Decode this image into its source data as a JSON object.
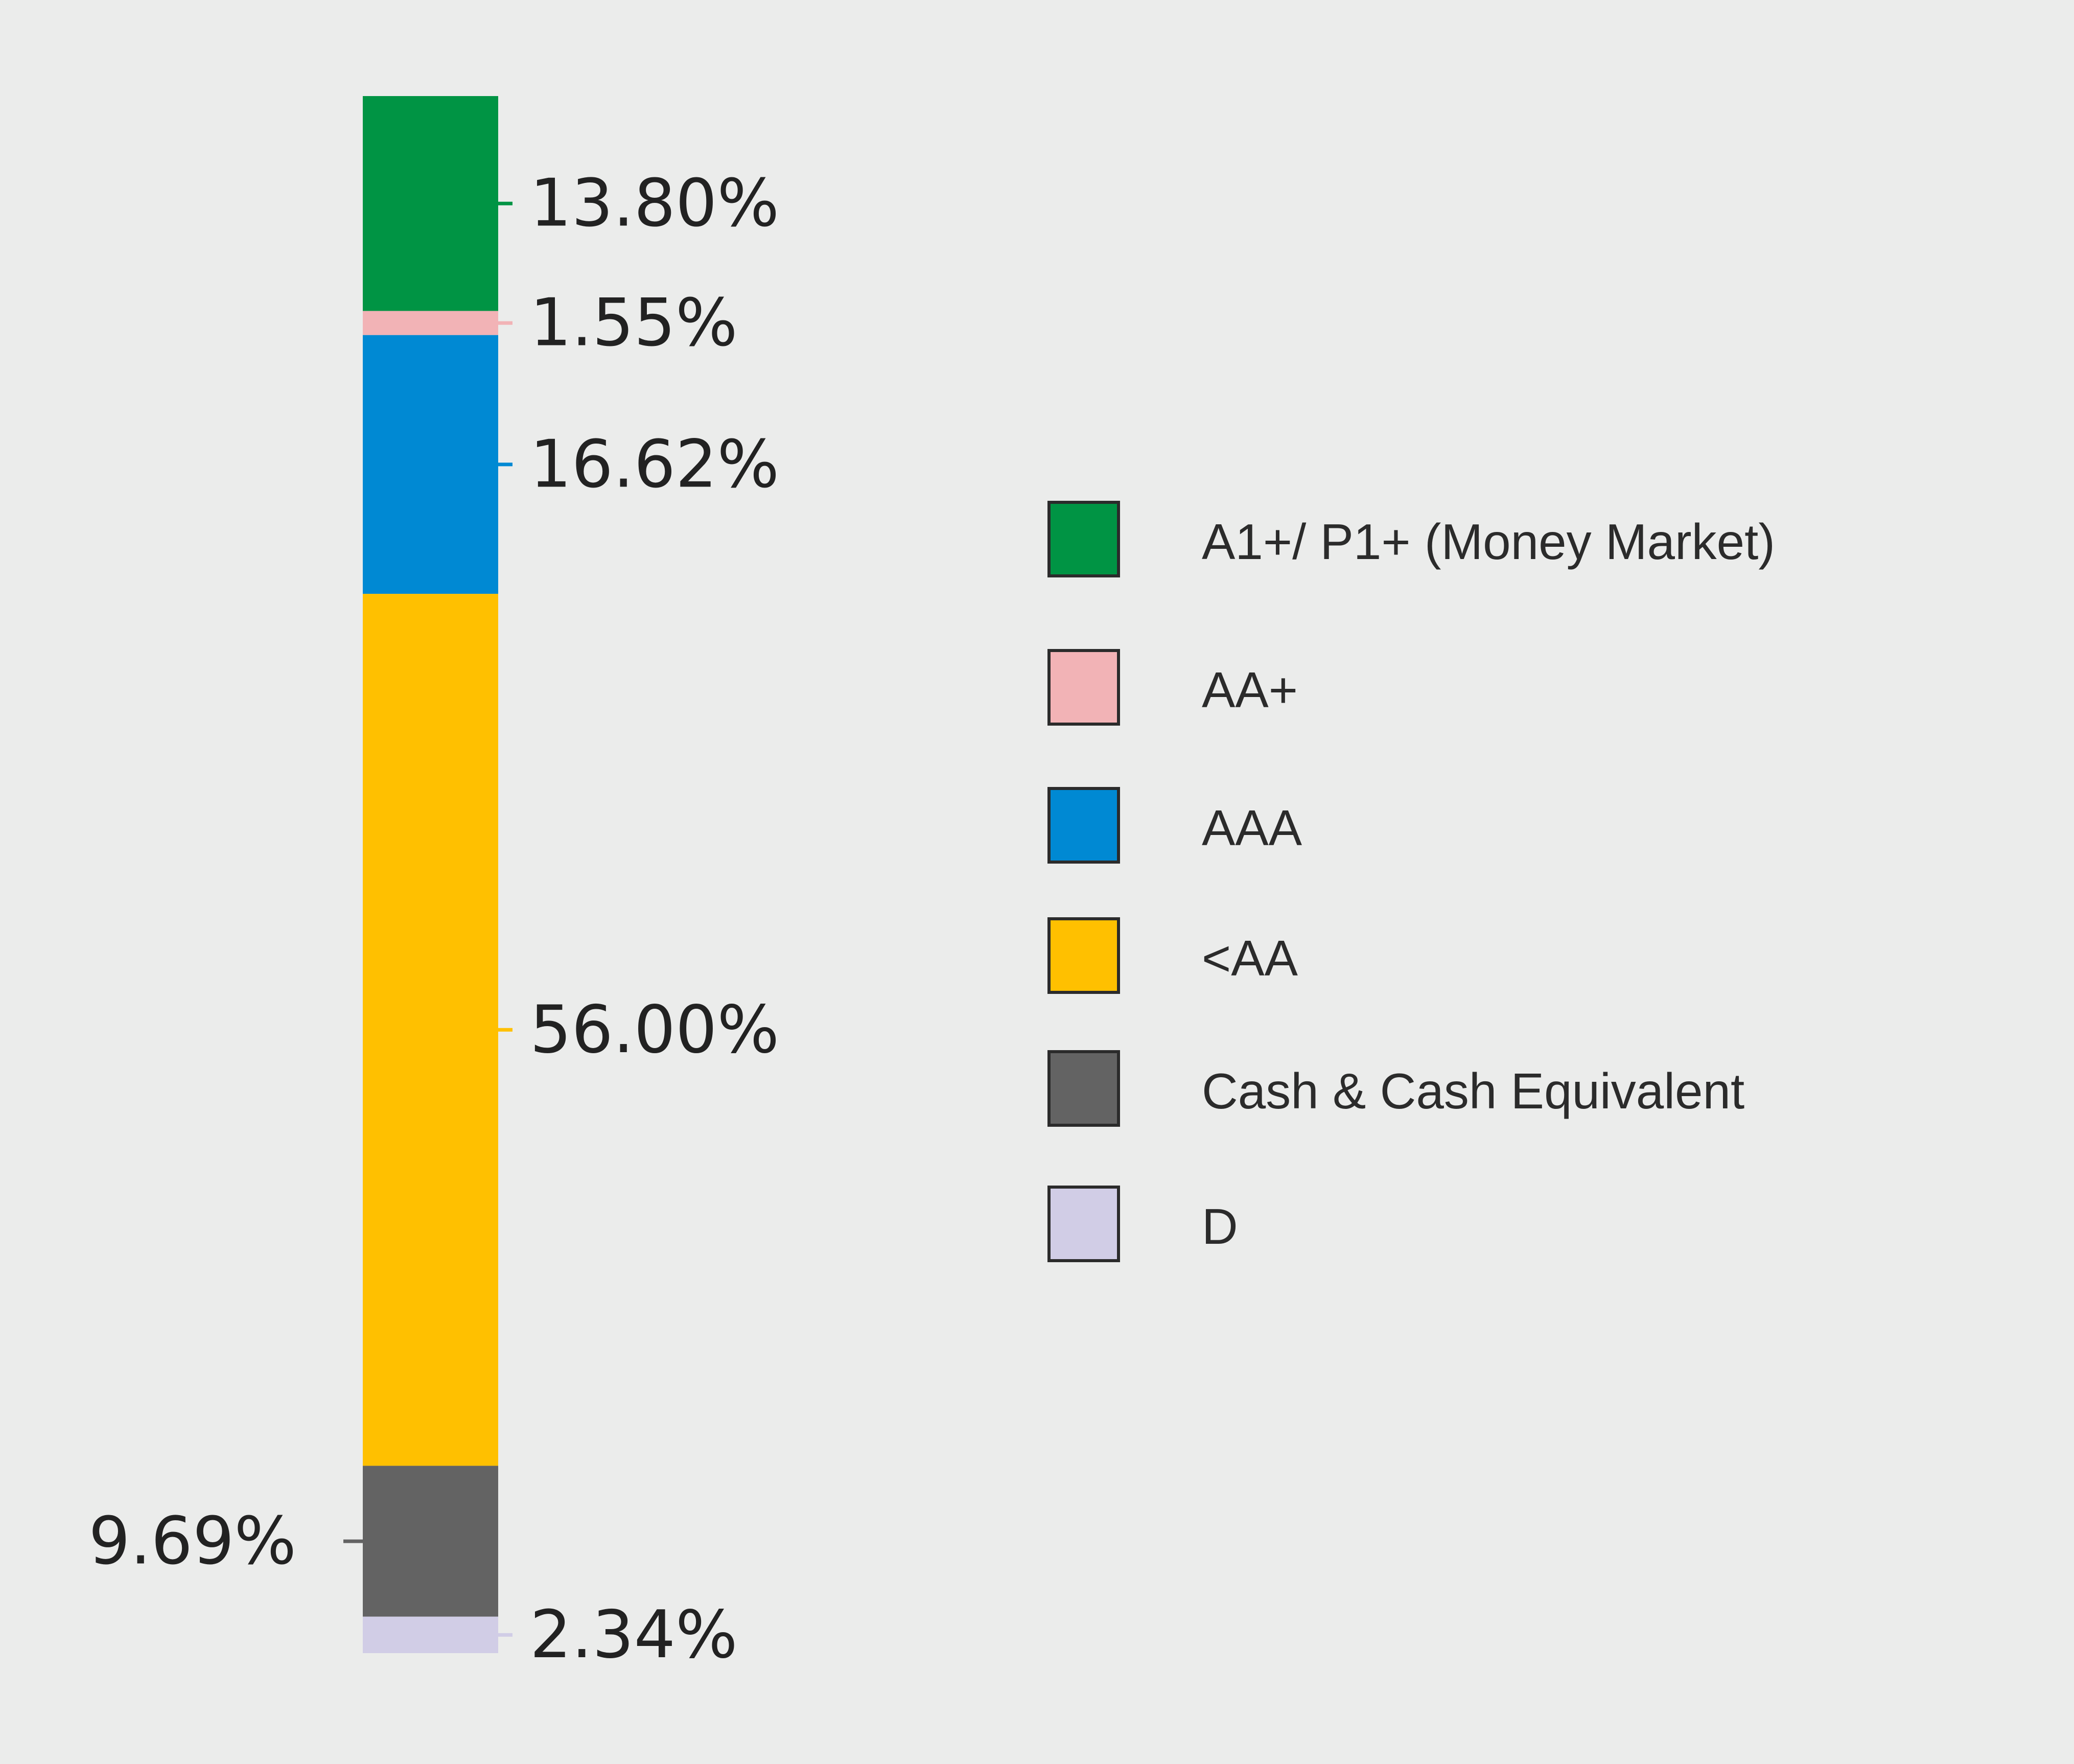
{
  "chart_data": {
    "type": "bar",
    "stacked": true,
    "orientation": "vertical",
    "unit": "%",
    "series": [
      {
        "name": "A1+/ P1+ (Money Market)",
        "value": 13.8,
        "label": "13.80%",
        "color": "#009444"
      },
      {
        "name": "AA+",
        "value": 1.55,
        "label": "1.55%",
        "color": "#f2b3b6"
      },
      {
        "name": "AAA",
        "value": 16.62,
        "label": "16.62%",
        "color": "#0089d3"
      },
      {
        "name": "<AA",
        "value": 56.0,
        "label": "56.00%",
        "color": "#ffc000"
      },
      {
        "name": "Cash & Cash Equivalent",
        "value": 9.69,
        "label": "9.69%",
        "color": "#636363"
      },
      {
        "name": "D",
        "value": 2.34,
        "label": "2.34%",
        "color": "#d1cde6"
      }
    ],
    "legend_position": "right",
    "grid": false
  },
  "colors": {
    "background": "#ebeceb",
    "text": "#222222",
    "swatch_border": "#2b2b2b"
  }
}
